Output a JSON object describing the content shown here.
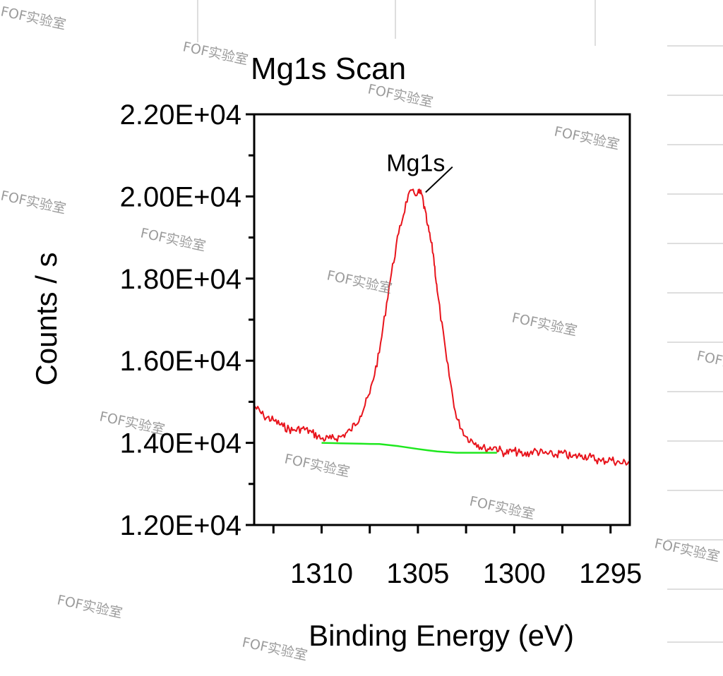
{
  "chart_data": {
    "type": "line",
    "title": "Mg1s Scan",
    "xlabel": "Binding Energy (eV)",
    "ylabel": "Counts / s",
    "x_reversed": true,
    "xlim": [
      1313.5,
      1294.0
    ],
    "ylim": [
      12000,
      22000
    ],
    "xticks": [
      1310,
      1305,
      1300,
      1295
    ],
    "xtick_labels": [
      "1310",
      "1305",
      "1300",
      "1295"
    ],
    "yticks": [
      12000,
      14000,
      16000,
      18000,
      20000,
      22000
    ],
    "ytick_labels": [
      "1.20E+04",
      "1.40E+04",
      "1.60E+04",
      "1.80E+04",
      "2.00E+04",
      "2.20E+04"
    ],
    "grid": false,
    "annotation": {
      "text": "Mg1s",
      "x": 1304.6,
      "y": 20100
    },
    "series": [
      {
        "color": "#e8141c",
        "x": [
          1313.5,
          1313.0,
          1312.5,
          1312.0,
          1311.5,
          1311.0,
          1310.5,
          1310.0,
          1309.5,
          1309.0,
          1308.5,
          1308.0,
          1307.5,
          1307.0,
          1306.5,
          1306.0,
          1305.5,
          1305.0,
          1304.8,
          1304.5,
          1304.2,
          1304.0,
          1303.5,
          1303.0,
          1302.5,
          1302.0,
          1301.5,
          1301.0,
          1300.5,
          1300.0,
          1299.5,
          1299.0,
          1298.5,
          1298.0,
          1297.5,
          1297.0,
          1296.5,
          1296.0,
          1295.5,
          1295.0,
          1294.5,
          1294.0
        ],
        "y": [
          14900,
          14650,
          14550,
          14400,
          14300,
          14350,
          14250,
          14100,
          14100,
          14150,
          14300,
          14650,
          15200,
          16200,
          17800,
          19100,
          20050,
          20100,
          20050,
          19300,
          18600,
          17700,
          16000,
          14600,
          14150,
          14000,
          13850,
          13900,
          13750,
          13800,
          13700,
          13800,
          13750,
          13700,
          13750,
          13650,
          13700,
          13650,
          13550,
          13600,
          13500,
          13550
        ]
      },
      {
        "color": "#1ee81e",
        "x": [
          1310.0,
          1309.0,
          1308.0,
          1307.0,
          1306.0,
          1305.0,
          1304.0,
          1303.0,
          1302.0,
          1301.0,
          1300.9
        ],
        "y": [
          14000,
          13990,
          13980,
          13970,
          13920,
          13850,
          13790,
          13760,
          13760,
          13760,
          13760
        ]
      }
    ]
  },
  "watermark": "FOF实验室"
}
